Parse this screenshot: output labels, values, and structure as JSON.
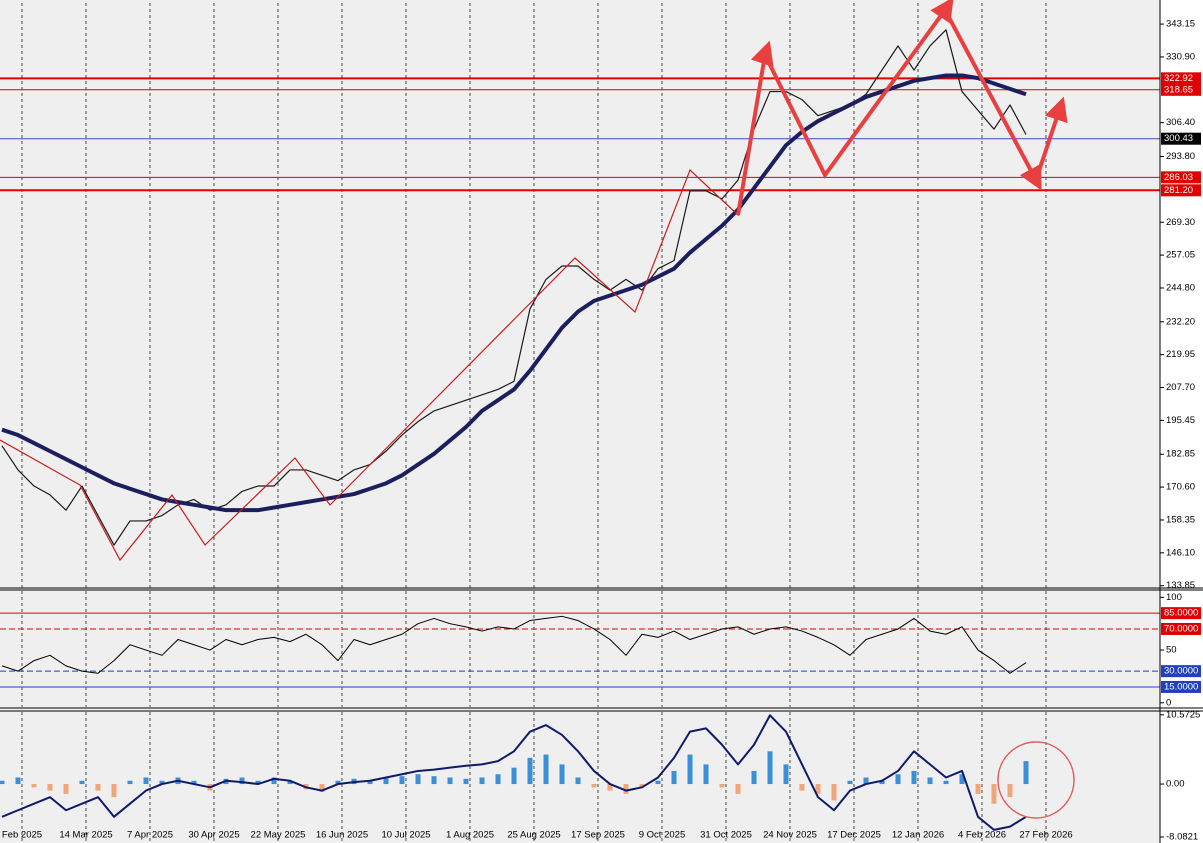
{
  "chart_data": [
    {
      "type": "line",
      "series": [
        {
          "color": "#1a1a1a",
          "width": 1.2,
          "values": [
            186,
            177,
            171,
            167.7,
            162,
            171,
            160,
            149,
            158,
            158,
            160,
            164,
            166,
            162,
            164,
            169,
            171,
            171,
            177,
            177,
            175,
            173,
            177,
            179,
            184,
            190,
            195,
            199,
            201,
            203,
            205,
            207,
            210,
            237,
            248,
            253,
            253,
            248,
            244,
            248,
            244,
            252,
            255,
            281,
            281,
            278,
            285,
            304,
            318,
            318,
            315,
            309,
            311,
            313,
            317,
            326,
            335,
            326,
            335,
            341,
            318,
            311,
            304,
            313,
            302,
            null
          ]
        },
        {
          "color": "#1b1f5e",
          "width": 4,
          "values": [
            192,
            190,
            187,
            184,
            181,
            178,
            175,
            172,
            170,
            168,
            166,
            165,
            164,
            163,
            162,
            162,
            162,
            163,
            164,
            165,
            166,
            167,
            168,
            170,
            172,
            175,
            179,
            183,
            188,
            193,
            199,
            203,
            207,
            214,
            222,
            230,
            236,
            240,
            242,
            244,
            246,
            249,
            252,
            258,
            263,
            268,
            274,
            282,
            290,
            298,
            303,
            307,
            310,
            313,
            316,
            318,
            320,
            322,
            323,
            324,
            324,
            323,
            321,
            319,
            317,
            null
          ]
        }
      ],
      "ylim": [
        133,
        351
      ],
      "yticks": [
        343.15,
        {
          "value": 330.9,
          "label": "330.90"
        },
        {
          "value": 306.4,
          "label": "306.40"
        },
        {
          "value": 293.8,
          "label": "293.80"
        },
        {
          "value": 269.3,
          "label": "269.30"
        },
        257.05,
        {
          "value": 244.8,
          "label": "244.80"
        },
        {
          "value": 232.2,
          "label": "232.20"
        },
        219.95,
        {
          "value": 207.7,
          "label": "207.70"
        },
        195.45,
        182.85,
        {
          "value": 170.6,
          "label": "170.60"
        },
        158.35,
        {
          "value": 146.1,
          "label": "146.10"
        },
        133.85
      ],
      "levels": [
        {
          "value": 322.92,
          "color": "#e00000",
          "box": "#e00000",
          "width": 2
        },
        {
          "value": 318.65,
          "color": "#e00000",
          "box": "#e00000",
          "width": 1
        },
        {
          "value": 300.43,
          "color": "#3050c0",
          "box": "#000000",
          "width": 1
        },
        {
          "value": 286.03,
          "color": "#e00000",
          "box": "#e00000",
          "width": 1
        },
        {
          "value": 281.2,
          "label": "281.20",
          "color": "#e00000",
          "box": "#e00000",
          "width": 2
        }
      ]
    },
    {
      "type": "line",
      "series": [
        {
          "color": "#000000",
          "width": 1,
          "values": [
            35,
            30,
            40,
            45,
            35,
            30,
            28,
            40,
            55,
            50,
            45,
            60,
            55,
            50,
            60,
            55,
            60,
            62,
            58,
            65,
            55,
            40,
            60,
            55,
            60,
            65,
            75,
            80,
            75,
            72,
            68,
            72,
            70,
            78,
            80,
            82,
            78,
            70,
            60,
            45,
            65,
            62,
            68,
            60,
            65,
            70,
            72,
            65,
            70,
            72,
            68,
            62,
            55,
            45,
            60,
            65,
            70,
            80,
            68,
            65,
            72,
            50,
            40,
            28,
            38,
            null
          ]
        }
      ],
      "ylim": [
        -4,
        106
      ],
      "yticks": [
        100,
        50,
        0
      ],
      "levels": [
        {
          "value": 85,
          "label": "85.0000",
          "color": "#e00000",
          "box": "#e00000",
          "dash": false
        },
        {
          "value": 70,
          "label": "70.0000",
          "color": "#e00000",
          "box": "#e00000",
          "dash": true
        },
        {
          "value": 30,
          "label": "30.0000",
          "color": "#2040c0",
          "box": "#2040c0",
          "dash": true
        },
        {
          "value": 15,
          "label": "15.0000",
          "color": "#2040c0",
          "box": "#2040c0",
          "dash": false
        }
      ]
    },
    {
      "type": "bar",
      "categories": [
        null,
        "Feb 2025",
        null,
        null,
        null,
        "14 Mar 2025",
        null,
        null,
        null,
        "7 Apr 2025",
        null,
        null,
        null,
        "30 Apr 2025",
        null,
        null,
        null,
        "22 May 2025",
        null,
        null,
        null,
        "16 Jun 2025",
        null,
        null,
        null,
        "10 Jul 2025",
        null,
        null,
        null,
        "1 Aug 2025",
        null,
        null,
        null,
        "25 Aug 2025",
        null,
        null,
        null,
        "17 Sep 2025",
        null,
        null,
        null,
        "9 Oct 2025",
        null,
        null,
        null,
        "31 Oct 2025",
        null,
        null,
        null,
        "24 Nov 2025",
        null,
        null,
        null,
        "17 Dec 2025",
        null,
        null,
        null,
        "12 Jan 2026",
        null,
        null,
        null,
        "4 Feb 2026",
        null,
        null,
        null,
        "27 Feb 2026"
      ],
      "series": [
        {
          "color": "#3a8fd8",
          "negative_color": "#f0a57a",
          "values": [
            0.5,
            1,
            -0.5,
            -1,
            -1.5,
            0.5,
            -1,
            -2,
            0.5,
            1,
            0.5,
            1,
            0.5,
            -1,
            0.8,
            1,
            0.5,
            1,
            0.5,
            -0.8,
            -1.2,
            0.5,
            0.8,
            0.6,
            1,
            1.2,
            1.5,
            1.2,
            1,
            0.8,
            1,
            1.5,
            2.5,
            4,
            4.5,
            3,
            1,
            -0.5,
            -1,
            -1.5,
            -0.5,
            0.5,
            2,
            4.5,
            3,
            -0.5,
            -1.5,
            2,
            5,
            3,
            -1,
            -1.5,
            -2.5,
            0.5,
            1,
            0.5,
            1.5,
            2,
            1,
            0.5,
            1.5,
            -1.5,
            -3,
            -2,
            3.5,
            null
          ]
        },
        {
          "type": "line",
          "color": "#101a6a",
          "width": 2,
          "values": [
            -5,
            -4,
            -3,
            -2,
            -4,
            -3,
            -2,
            -5,
            -3,
            -1,
            0,
            0.5,
            0,
            -0.5,
            0.5,
            0.3,
            0,
            0.8,
            0.5,
            -0.5,
            -1,
            0,
            0.3,
            0.5,
            1,
            1.5,
            2,
            2.2,
            2.5,
            2.8,
            3,
            3.5,
            5,
            8,
            9,
            7.5,
            5,
            2,
            0,
            -1,
            -0.5,
            1,
            4,
            8,
            8.5,
            6,
            3,
            6,
            10.5,
            8,
            3,
            -2,
            -4,
            -1,
            0,
            0.5,
            2,
            5,
            3,
            1,
            2,
            -5,
            -7,
            -6.5,
            -5,
            null
          ]
        }
      ],
      "ylim": [
        -9,
        11
      ],
      "yticks": [
        10.5725,
        {
          "value": 0,
          "label": "0.00"
        },
        -8.0821
      ]
    }
  ]
}
